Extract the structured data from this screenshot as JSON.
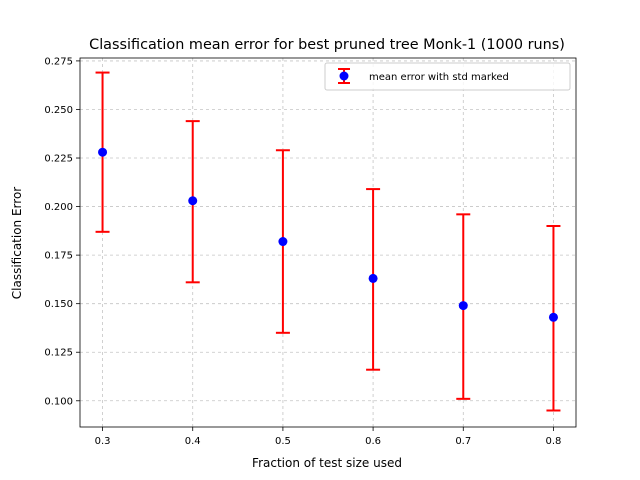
{
  "chart_data": {
    "type": "scatter",
    "title": "Classification mean error for best pruned tree Monk-1 (1000 runs)",
    "xlabel": "Fraction of test size used",
    "ylabel": "Classification Error",
    "xlim": [
      0.275,
      0.825
    ],
    "ylim": [
      0.0865,
      0.2765
    ],
    "xticks": [
      "0.3",
      "0.4",
      "0.5",
      "0.6",
      "0.7",
      "0.8"
    ],
    "yticks": [
      "0.100",
      "0.125",
      "0.150",
      "0.175",
      "0.200",
      "0.225",
      "0.250",
      "0.275"
    ],
    "grid": true,
    "legend_position": "upper right",
    "series": [
      {
        "name": "mean error with std marked",
        "marker_color": "#0000ff",
        "errorbar_color": "#ff0000",
        "x": [
          0.3,
          0.4,
          0.5,
          0.6,
          0.7,
          0.8
        ],
        "y": [
          0.228,
          0.203,
          0.182,
          0.163,
          0.149,
          0.143
        ],
        "y_err_low": [
          0.187,
          0.161,
          0.135,
          0.116,
          0.101,
          0.095
        ],
        "y_err_high": [
          0.269,
          0.244,
          0.229,
          0.209,
          0.196,
          0.19
        ]
      }
    ]
  }
}
